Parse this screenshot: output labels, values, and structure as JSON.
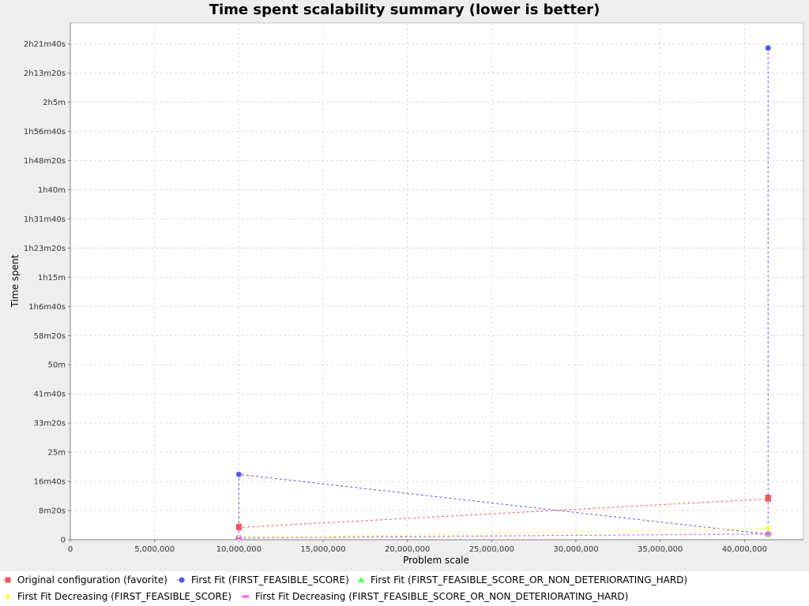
{
  "chart_data": {
    "type": "line",
    "title": "Time spent scalability summary (lower is better)",
    "xlabel": "Problem scale",
    "ylabel": "Time spent",
    "xlim": [
      0,
      43500000
    ],
    "ylim": [
      0,
      8860
    ],
    "grid": true,
    "legend_position": "bottom",
    "x_ticks": [
      {
        "value": 0,
        "label": "0"
      },
      {
        "value": 5000000,
        "label": "5,000,000"
      },
      {
        "value": 10000000,
        "label": "10,000,000"
      },
      {
        "value": 15000000,
        "label": "15,000,000"
      },
      {
        "value": 20000000,
        "label": "20,000,000"
      },
      {
        "value": 25000000,
        "label": "25,000,000"
      },
      {
        "value": 30000000,
        "label": "30,000,000"
      },
      {
        "value": 35000000,
        "label": "35,000,000"
      },
      {
        "value": 40000000,
        "label": "40,000,000"
      }
    ],
    "y_ticks": [
      {
        "value": 0,
        "label": "0"
      },
      {
        "value": 500,
        "label": "8m20s"
      },
      {
        "value": 1000,
        "label": "16m40s"
      },
      {
        "value": 1500,
        "label": "25m"
      },
      {
        "value": 2000,
        "label": "33m20s"
      },
      {
        "value": 2500,
        "label": "41m40s"
      },
      {
        "value": 3000,
        "label": "50m"
      },
      {
        "value": 3500,
        "label": "58m20s"
      },
      {
        "value": 4000,
        "label": "1h6m40s"
      },
      {
        "value": 4500,
        "label": "1h15m"
      },
      {
        "value": 5000,
        "label": "1h23m20s"
      },
      {
        "value": 5500,
        "label": "1h31m40s"
      },
      {
        "value": 6000,
        "label": "1h40m"
      },
      {
        "value": 6500,
        "label": "1h48m20s"
      },
      {
        "value": 7000,
        "label": "1h56m40s"
      },
      {
        "value": 7500,
        "label": "2h5m"
      },
      {
        "value": 8000,
        "label": "2h13m20s"
      },
      {
        "value": 8500,
        "label": "2h21m40s"
      }
    ],
    "series": [
      {
        "name": "Original configuration (favorite)",
        "color": "#ff5555",
        "marker": "square",
        "points": [
          {
            "x": 10000000,
            "y": 225
          },
          {
            "x": 10000000,
            "y": 210
          },
          {
            "x": 41400000,
            "y": 700
          },
          {
            "x": 41400000,
            "y": 725
          }
        ]
      },
      {
        "name": "First Fit (FIRST_FEASIBLE_SCORE)",
        "color": "#5555ff",
        "marker": "circle",
        "points": [
          {
            "x": 10000000,
            "y": 35
          },
          {
            "x": 10000000,
            "y": 1120
          },
          {
            "x": 41400000,
            "y": 95
          },
          {
            "x": 41400000,
            "y": 8430
          }
        ]
      },
      {
        "name": "First Fit (FIRST_FEASIBLE_SCORE_OR_NON_DETERIORATING_HARD)",
        "color": "#55ff55",
        "marker": "triangle",
        "points": [
          {
            "x": 10000000,
            "y": 45
          },
          {
            "x": 41400000,
            "y": 95
          }
        ]
      },
      {
        "name": "First Fit Decreasing (FIRST_FEASIBLE_SCORE)",
        "color": "#ffff55",
        "marker": "diamond",
        "points": [
          {
            "x": 10000000,
            "y": 30
          },
          {
            "x": 41400000,
            "y": 200
          }
        ]
      },
      {
        "name": "First Fit Decreasing (FIRST_FEASIBLE_SCORE_OR_NON_DETERIORATING_HARD)",
        "color": "#ff55ff",
        "marker": "rect",
        "points": [
          {
            "x": 10000000,
            "y": 25
          },
          {
            "x": 41400000,
            "y": 100
          }
        ]
      }
    ],
    "legend_entries": [
      "Original configuration (favorite)",
      "First Fit (FIRST_FEASIBLE_SCORE)",
      "First Fit (FIRST_FEASIBLE_SCORE_OR_NON_DETERIORATING_HARD)",
      "First Fit Decreasing (FIRST_FEASIBLE_SCORE)",
      "First Fit Decreasing (FIRST_FEASIBLE_SCORE_OR_NON_DETERIORATING_HARD)"
    ]
  }
}
